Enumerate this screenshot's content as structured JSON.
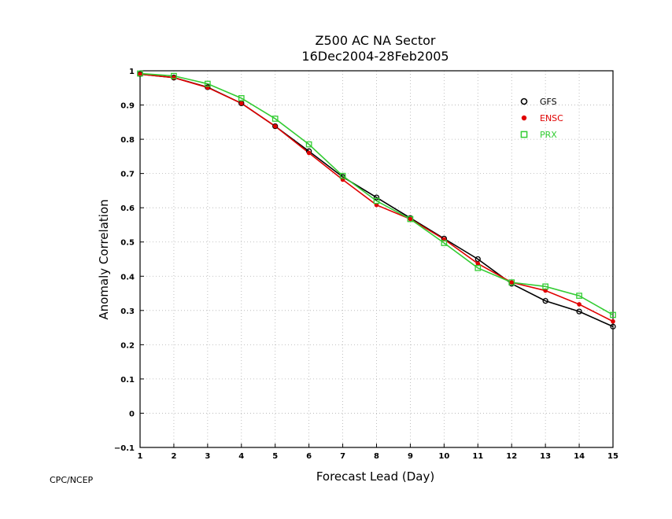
{
  "credit": "CPC/NCEP",
  "chart_data": {
    "type": "line",
    "title": "Z500 AC NA Sector",
    "subtitle": "16Dec2004-28Feb2005",
    "xlabel": "Forecast Lead (Day)",
    "ylabel": "Anomaly Correlation",
    "xlim": [
      1,
      15
    ],
    "ylim": [
      -0.1,
      1
    ],
    "x_ticks": [
      1,
      2,
      3,
      4,
      5,
      6,
      7,
      8,
      9,
      10,
      11,
      12,
      13,
      14,
      15
    ],
    "y_ticks": [
      -0.1,
      0,
      0.1,
      0.2,
      0.3,
      0.4,
      0.5,
      0.6,
      0.7,
      0.8,
      0.9,
      1
    ],
    "y_tick_labels": [
      "−0.1",
      "0",
      "0.1",
      "0.2",
      "0.3",
      "0.4",
      "0.5",
      "0.6",
      "0.7",
      "0.8",
      "0.9",
      "1"
    ],
    "grid": true,
    "legend_position": "top-right",
    "x": [
      1,
      2,
      3,
      4,
      5,
      6,
      7,
      8,
      9,
      10,
      11,
      12,
      13,
      14,
      15
    ],
    "series": [
      {
        "name": "GFS",
        "color": "#000000",
        "marker": "open-circle",
        "values": [
          0.99,
          0.98,
          0.952,
          0.905,
          0.838,
          0.765,
          0.69,
          0.63,
          0.57,
          0.51,
          0.45,
          0.378,
          0.328,
          0.297,
          0.253
        ]
      },
      {
        "name": "ENSC",
        "color": "#e00000",
        "marker": "filled-circle",
        "values": [
          0.99,
          0.98,
          0.951,
          0.905,
          0.838,
          0.76,
          0.682,
          0.608,
          0.567,
          0.508,
          0.437,
          0.382,
          0.358,
          0.318,
          0.268
        ]
      },
      {
        "name": "PRX",
        "color": "#33cc33",
        "marker": "open-square",
        "values": [
          0.992,
          0.985,
          0.962,
          0.92,
          0.86,
          0.785,
          0.693,
          0.62,
          0.567,
          0.497,
          0.424,
          0.382,
          0.37,
          0.343,
          0.287
        ]
      }
    ]
  }
}
